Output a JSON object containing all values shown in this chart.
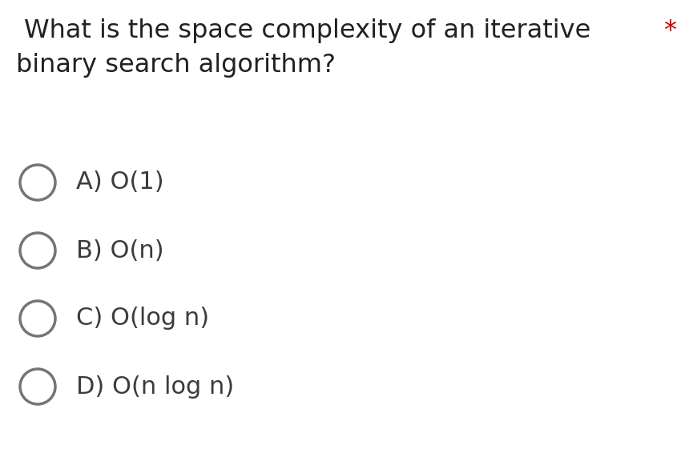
{
  "background_color": "#ffffff",
  "question_line1": "What is the space complexity of an iterative ",
  "question_line1_suffix": "*",
  "question_line2": "binary search algorithm?",
  "question_color": "#212121",
  "asterisk_color": "#cc0000",
  "options": [
    "A) O(1)",
    "B) O(n)",
    "C) O(log n)",
    "D) O(n log n)"
  ],
  "option_color": "#3c3c3c",
  "circle_edge_color": "#757575",
  "question_fontsize": 23,
  "option_fontsize": 22,
  "fig_width": 8.6,
  "fig_height": 5.71
}
